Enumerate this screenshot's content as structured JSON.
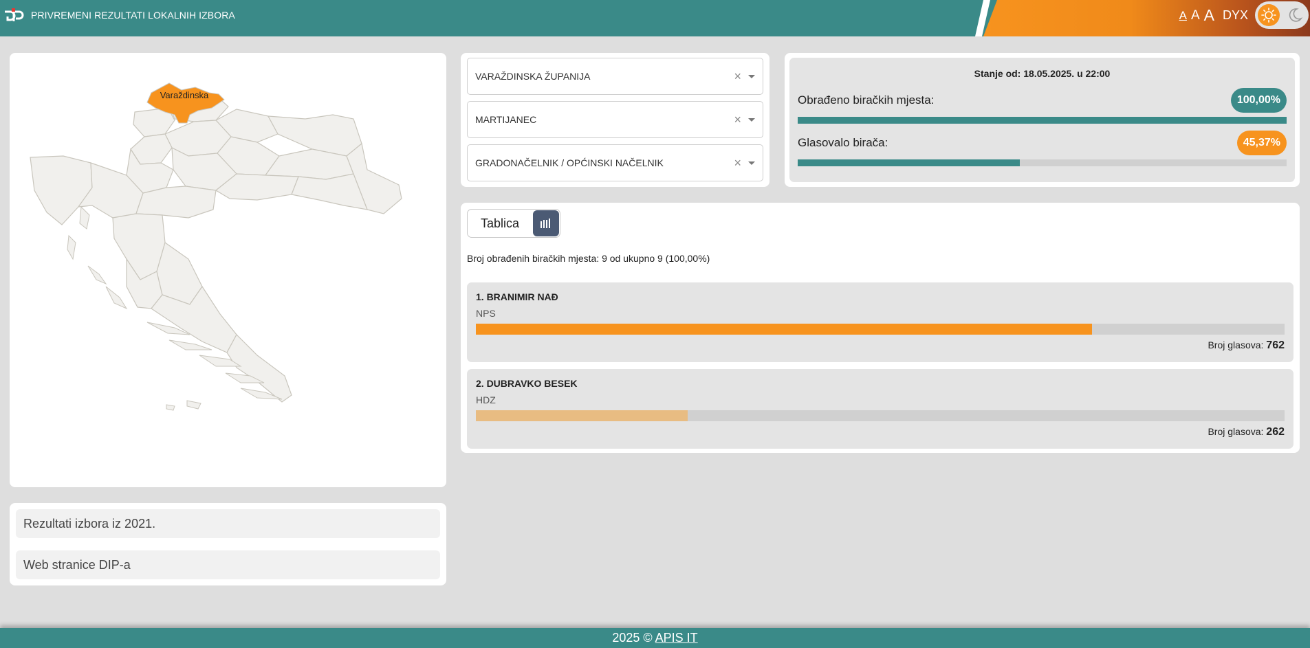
{
  "header": {
    "title": "PRIVREMENI REZULTATI LOKALNIH IZBORA",
    "font_small": "A",
    "font_medium": "A",
    "font_large": "A",
    "dyslexia": "DYX",
    "colors": {
      "primary": "#3a8a88",
      "accent": "#f7931e"
    },
    "icons": [
      "logo-icon",
      "sun-icon",
      "moon-icon"
    ]
  },
  "map": {
    "selected_label": "Varaždinska",
    "selected_color": "#f7931e"
  },
  "links": [
    {
      "label": "Rezultati izbora iz 2021."
    },
    {
      "label": "Web stranice DIP-a"
    }
  ],
  "filters": [
    {
      "value": "VARAŽDINSKA ŽUPANIJA"
    },
    {
      "value": "MARTIJANEC"
    },
    {
      "value": "GRADONAČELNIK / OPĆINSKI NAČELNIK"
    }
  ],
  "filter_clear_symbol": "×",
  "stats": {
    "date": "Stanje od: 18.05.2025. u 22:00",
    "processed_label": "Obrađeno biračkih mjesta:",
    "processed_value": "100,00%",
    "processed_fraction": 1.0,
    "turnout_label": "Glasovalo birača:",
    "turnout_value": "45,37%",
    "turnout_fraction": 0.4537
  },
  "results": {
    "tab_table": "Tablica",
    "processed_text": "Broj obrađenih biračkih mjesta: 9 od ukupno 9 (100,00%)",
    "votes_label": "Broj glasova:",
    "max_votes": 1000,
    "candidates": [
      {
        "name": "1. BRANIMIR NAĐ",
        "party": "NPS",
        "votes": 762,
        "color": "#f7931e"
      },
      {
        "name": "2. DUBRAVKO BESEK",
        "party": "HDZ",
        "votes": 262,
        "color": "#e8bc82"
      }
    ]
  },
  "footer": {
    "prefix": "2025 ©",
    "link": "APIS IT"
  }
}
